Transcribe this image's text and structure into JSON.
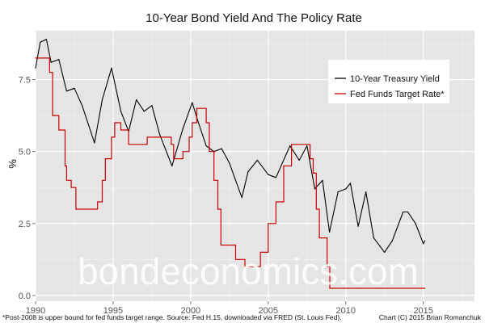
{
  "chart_data": {
    "type": "line",
    "title": "10-Year Bond Yield And The Policy Rate",
    "xlabel": "",
    "ylabel": "%",
    "xlim": [
      1990,
      2018.3
    ],
    "ylim": [
      -0.2,
      9.2
    ],
    "x_ticks": [
      1990,
      1995,
      2000,
      2005,
      2010,
      2015
    ],
    "y_ticks": [
      0.0,
      2.5,
      5.0,
      7.5
    ],
    "y_tick_labels": [
      "0.0",
      "2.5",
      "5.0",
      "7.5"
    ],
    "grid": true,
    "legend": "top-right",
    "series": [
      {
        "name": "10-Year Treasury Yield",
        "color": "#000000",
        "points": [
          [
            1990.0,
            7.9
          ],
          [
            1990.3,
            8.8
          ],
          [
            1990.7,
            8.9
          ],
          [
            1991.0,
            8.1
          ],
          [
            1991.5,
            8.2
          ],
          [
            1992.0,
            7.1
          ],
          [
            1992.5,
            7.2
          ],
          [
            1993.0,
            6.6
          ],
          [
            1993.8,
            5.3
          ],
          [
            1994.3,
            6.8
          ],
          [
            1994.9,
            7.9
          ],
          [
            1995.5,
            6.4
          ],
          [
            1996.0,
            5.7
          ],
          [
            1996.5,
            6.8
          ],
          [
            1997.0,
            6.4
          ],
          [
            1997.5,
            6.6
          ],
          [
            1998.0,
            5.6
          ],
          [
            1998.8,
            4.5
          ],
          [
            1999.5,
            5.8
          ],
          [
            2000.1,
            6.7
          ],
          [
            2000.5,
            6.0
          ],
          [
            2001.0,
            5.2
          ],
          [
            2001.5,
            5.0
          ],
          [
            2002.0,
            5.1
          ],
          [
            2002.5,
            4.6
          ],
          [
            2003.3,
            3.4
          ],
          [
            2003.7,
            4.3
          ],
          [
            2004.3,
            4.7
          ],
          [
            2005.0,
            4.2
          ],
          [
            2005.5,
            4.1
          ],
          [
            2006.4,
            5.2
          ],
          [
            2007.0,
            4.7
          ],
          [
            2007.5,
            5.2
          ],
          [
            2008.0,
            3.7
          ],
          [
            2008.5,
            4.0
          ],
          [
            2008.95,
            2.2
          ],
          [
            2009.5,
            3.6
          ],
          [
            2010.0,
            3.7
          ],
          [
            2010.3,
            3.9
          ],
          [
            2010.8,
            2.4
          ],
          [
            2011.3,
            3.6
          ],
          [
            2011.8,
            2.0
          ],
          [
            2012.5,
            1.5
          ],
          [
            2013.0,
            1.9
          ],
          [
            2013.7,
            2.9
          ],
          [
            2014.0,
            2.9
          ],
          [
            2014.5,
            2.5
          ],
          [
            2015.0,
            1.8
          ],
          [
            2015.1,
            1.9
          ]
        ]
      },
      {
        "name": "Fed Funds Target Rate*",
        "color": "#cc0000",
        "points": [
          [
            1990.0,
            8.25
          ],
          [
            1990.9,
            7.75
          ],
          [
            1991.1,
            6.25
          ],
          [
            1991.5,
            5.75
          ],
          [
            1991.9,
            4.5
          ],
          [
            1992.0,
            4.0
          ],
          [
            1992.3,
            3.75
          ],
          [
            1992.6,
            3.0
          ],
          [
            1994.0,
            3.25
          ],
          [
            1994.3,
            4.0
          ],
          [
            1994.5,
            4.75
          ],
          [
            1994.9,
            5.5
          ],
          [
            1995.1,
            6.0
          ],
          [
            1995.5,
            5.75
          ],
          [
            1996.0,
            5.25
          ],
          [
            1997.2,
            5.5
          ],
          [
            1998.75,
            5.25
          ],
          [
            1998.9,
            4.75
          ],
          [
            1999.5,
            5.0
          ],
          [
            1999.9,
            5.5
          ],
          [
            2000.1,
            6.0
          ],
          [
            2000.4,
            6.5
          ],
          [
            2001.0,
            6.0
          ],
          [
            2001.2,
            5.0
          ],
          [
            2001.5,
            4.0
          ],
          [
            2001.75,
            3.0
          ],
          [
            2001.95,
            1.75
          ],
          [
            2002.9,
            1.25
          ],
          [
            2003.5,
            1.0
          ],
          [
            2004.5,
            1.5
          ],
          [
            2005.0,
            2.5
          ],
          [
            2005.5,
            3.25
          ],
          [
            2006.0,
            4.5
          ],
          [
            2006.5,
            5.25
          ],
          [
            2007.7,
            4.75
          ],
          [
            2007.9,
            4.25
          ],
          [
            2008.1,
            3.0
          ],
          [
            2008.3,
            2.0
          ],
          [
            2008.8,
            1.0
          ],
          [
            2008.97,
            0.25
          ],
          [
            2015.1,
            0.25
          ]
        ]
      }
    ],
    "note": "*Post-2008 is upper bound for fed funds target range. Source: Fed H.15, downloaded via FRED (St. Louis Fed).",
    "credit": "Chart (C) 2015 Brian Romanchuk",
    "watermark": "bondeconomics.com"
  }
}
